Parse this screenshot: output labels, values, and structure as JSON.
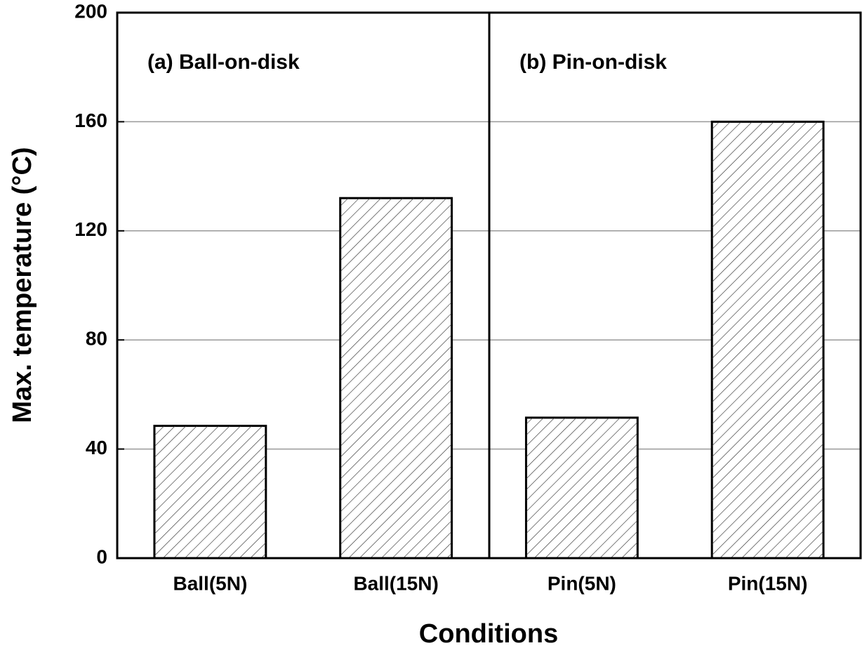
{
  "chart_data": {
    "type": "bar",
    "x_label": "Conditions",
    "y_label": "Max. temperature (°C)",
    "annotations": [
      "(a) Ball-on-disk",
      "(b) Pin-on-disk"
    ],
    "categories": [
      "Ball(5N)",
      "Ball(15N)",
      "Pin(5N)",
      "Pin(15N)"
    ],
    "values": [
      48.5,
      132,
      51.5,
      160
    ],
    "color": "#ffffff",
    "edge_color": "#000000",
    "hatch": "//",
    "ylim": [
      0,
      200
    ],
    "yticks": [
      0,
      40,
      80,
      120,
      160,
      200
    ],
    "grid": true
  }
}
